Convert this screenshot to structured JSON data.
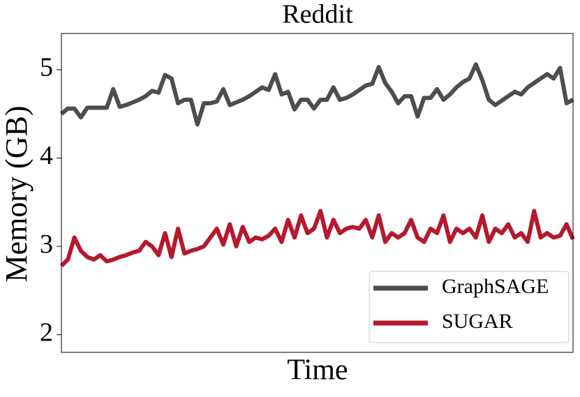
{
  "chart_data": {
    "type": "line",
    "title": "Reddit",
    "xlabel": "Time",
    "ylabel": "Memory (GB)",
    "categories": [
      null,
      null,
      null,
      null,
      null,
      null,
      null,
      null,
      null,
      null,
      null,
      null,
      null,
      null,
      null,
      null,
      null,
      null,
      null,
      null,
      null,
      null,
      null,
      null,
      null,
      null,
      null,
      null,
      null,
      null,
      null,
      null,
      null,
      null,
      null,
      null,
      null,
      null,
      null,
      null,
      null,
      null,
      null,
      null,
      null,
      null,
      null,
      null,
      null,
      null,
      null,
      null,
      null,
      null,
      null,
      null,
      null,
      null,
      null,
      null,
      null,
      null,
      null,
      null,
      null,
      null,
      null,
      null,
      null,
      null,
      null,
      null,
      null,
      null,
      null,
      null,
      null,
      null,
      null,
      null
    ],
    "series": [
      {
        "name": "GraphSAGE",
        "color": "#4d4d4d",
        "values": [
          4.5,
          4.56,
          4.56,
          4.46,
          4.57,
          4.57,
          4.57,
          4.57,
          4.78,
          4.58,
          4.6,
          4.63,
          4.66,
          4.7,
          4.76,
          4.74,
          4.94,
          4.9,
          4.62,
          4.66,
          4.66,
          4.38,
          4.62,
          4.62,
          4.64,
          4.78,
          4.6,
          4.63,
          4.66,
          4.7,
          4.75,
          4.8,
          4.77,
          4.95,
          4.72,
          4.75,
          4.55,
          4.66,
          4.66,
          4.56,
          4.66,
          4.66,
          4.8,
          4.66,
          4.68,
          4.72,
          4.77,
          4.82,
          4.84,
          5.03,
          4.85,
          4.75,
          4.62,
          4.7,
          4.7,
          4.47,
          4.68,
          4.68,
          4.78,
          4.66,
          4.72,
          4.8,
          4.86,
          4.9,
          5.06,
          4.88,
          4.66,
          4.6,
          4.65,
          4.7,
          4.75,
          4.72,
          4.8,
          4.85,
          4.9,
          4.95,
          4.9,
          5.02,
          4.62,
          4.66
        ]
      },
      {
        "name": "SUGAR",
        "color": "#b5192e",
        "values": [
          2.78,
          2.85,
          3.1,
          2.95,
          2.88,
          2.85,
          2.9,
          2.83,
          2.85,
          2.88,
          2.9,
          2.93,
          2.95,
          3.05,
          3.0,
          2.9,
          3.15,
          2.88,
          3.2,
          2.92,
          2.95,
          2.97,
          3.0,
          3.1,
          3.2,
          3.02,
          3.25,
          3.0,
          3.22,
          3.05,
          3.1,
          3.08,
          3.12,
          3.2,
          3.05,
          3.3,
          3.1,
          3.35,
          3.15,
          3.2,
          3.4,
          3.1,
          3.3,
          3.15,
          3.2,
          3.22,
          3.2,
          3.3,
          3.1,
          3.35,
          3.05,
          3.15,
          3.1,
          3.15,
          3.3,
          3.1,
          3.05,
          3.2,
          3.15,
          3.35,
          3.05,
          3.2,
          3.15,
          3.2,
          3.1,
          3.35,
          3.05,
          3.2,
          3.15,
          3.25,
          3.1,
          3.15,
          3.05,
          3.4,
          3.1,
          3.15,
          3.1,
          3.12,
          3.25,
          3.08
        ]
      }
    ],
    "ylim": [
      1.8,
      5.41
    ],
    "yticks": [
      2,
      3,
      4,
      5
    ],
    "legend": "lower right"
  }
}
